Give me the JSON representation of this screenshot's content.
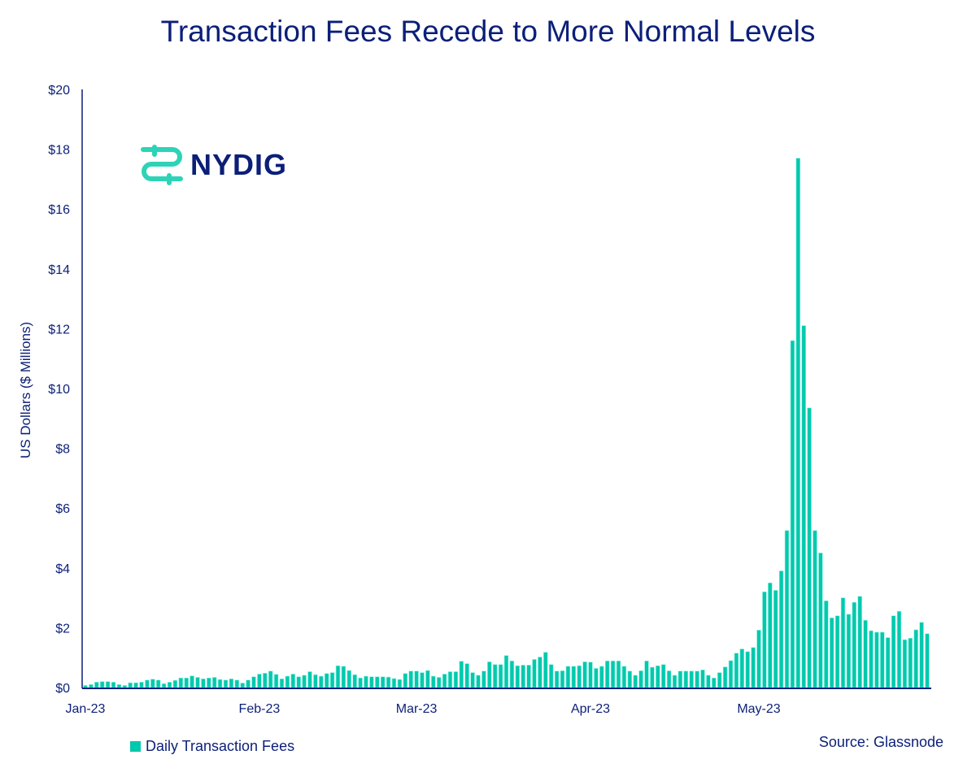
{
  "chart_data": {
    "type": "bar",
    "title": "Transaction Fees Recede to More Normal Levels",
    "xlabel": "",
    "ylabel": "US Dollars ($ Millions)",
    "ylim": [
      0,
      20
    ],
    "yticks": [
      "$0",
      "$2",
      "$4",
      "$6",
      "$8",
      "$10",
      "$12",
      "$14",
      "$16",
      "$18",
      "$20"
    ],
    "ytick_values": [
      0,
      2,
      4,
      6,
      8,
      10,
      12,
      14,
      16,
      18,
      20
    ],
    "xticks": [
      {
        "label": "Jan-23",
        "day": 0
      },
      {
        "label": "Feb-23",
        "day": 31
      },
      {
        "label": "Mar-23",
        "day": 59
      },
      {
        "label": "Apr-23",
        "day": 90
      },
      {
        "label": "May-23",
        "day": 120
      }
    ],
    "x_start": "2023-01-01",
    "x_end": "2023-05-31",
    "grid": false,
    "legend_position": "bottom-left",
    "series": [
      {
        "name": "Daily Transaction Fees",
        "color": "#00c9ad",
        "values": [
          0.07,
          0.1,
          0.18,
          0.2,
          0.2,
          0.18,
          0.1,
          0.07,
          0.16,
          0.16,
          0.18,
          0.25,
          0.28,
          0.25,
          0.13,
          0.18,
          0.24,
          0.32,
          0.32,
          0.39,
          0.34,
          0.29,
          0.32,
          0.34,
          0.27,
          0.25,
          0.29,
          0.25,
          0.15,
          0.25,
          0.36,
          0.45,
          0.48,
          0.55,
          0.44,
          0.29,
          0.38,
          0.45,
          0.36,
          0.41,
          0.53,
          0.43,
          0.38,
          0.47,
          0.5,
          0.73,
          0.71,
          0.57,
          0.43,
          0.32,
          0.38,
          0.36,
          0.36,
          0.36,
          0.35,
          0.3,
          0.27,
          0.47,
          0.55,
          0.55,
          0.5,
          0.57,
          0.38,
          0.34,
          0.45,
          0.53,
          0.53,
          0.88,
          0.8,
          0.5,
          0.41,
          0.55,
          0.86,
          0.77,
          0.77,
          1.07,
          0.89,
          0.73,
          0.75,
          0.75,
          0.94,
          1.02,
          1.18,
          0.77,
          0.55,
          0.56,
          0.71,
          0.71,
          0.73,
          0.86,
          0.85,
          0.64,
          0.71,
          0.89,
          0.89,
          0.89,
          0.71,
          0.55,
          0.41,
          0.56,
          0.89,
          0.68,
          0.73,
          0.77,
          0.56,
          0.41,
          0.55,
          0.55,
          0.55,
          0.55,
          0.59,
          0.41,
          0.32,
          0.5,
          0.69,
          0.9,
          1.15,
          1.29,
          1.2,
          1.34,
          1.92,
          3.2,
          3.5,
          3.25,
          3.9,
          5.25,
          11.6,
          17.7,
          12.1,
          9.35,
          5.25,
          4.5,
          2.9,
          2.33,
          2.4,
          3.0,
          2.45,
          2.85,
          3.05,
          2.25,
          1.9,
          1.85,
          1.85,
          1.67,
          2.4,
          2.55,
          1.6,
          1.65,
          1.93,
          2.18,
          1.8
        ]
      }
    ],
    "source": "Source: Glassnode"
  },
  "logo": {
    "text": "NYDIG",
    "color": "#2ed3b7"
  }
}
